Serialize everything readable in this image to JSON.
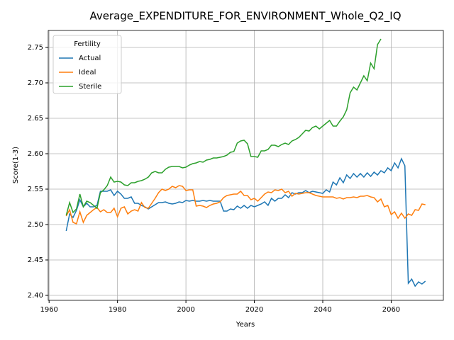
{
  "chart_data": {
    "type": "line",
    "title": "Average_EXPENDITURE_FOR_ENVIRONMENT_Whole_Q2_IQ",
    "xlabel": "Years",
    "ylabel": "Score(1-3)",
    "legend_title": "Fertility",
    "legend": "upper left",
    "grid": true,
    "xlim": [
      1959.75,
      2075.25
    ],
    "ylim": [
      2.393,
      2.774
    ],
    "xticks": [
      1960,
      1980,
      2000,
      2020,
      2040,
      2060
    ],
    "yticks": [
      {
        "value": 2.4,
        "label": "2.40"
      },
      {
        "value": 2.45,
        "label": "2.45"
      },
      {
        "value": 2.5,
        "label": "2.50"
      },
      {
        "value": 2.55,
        "label": "2.55"
      },
      {
        "value": 2.6,
        "label": "2.60"
      },
      {
        "value": 2.65,
        "label": "2.65"
      },
      {
        "value": 2.7,
        "label": "2.70"
      },
      {
        "value": 2.75,
        "label": "2.75"
      }
    ],
    "series": [
      {
        "name": "Actual",
        "color": "#1f77b4",
        "x": [
          1965,
          1966,
          1967,
          1968,
          1969,
          1970,
          1971,
          1972,
          1973,
          1974,
          1975,
          1976,
          1977,
          1978,
          1979,
          1980,
          1981,
          1982,
          1983,
          1984,
          1985,
          1986,
          1987,
          1988,
          1989,
          1990,
          1991,
          1992,
          1993,
          1994,
          1995,
          1996,
          1997,
          1998,
          1999,
          2000,
          2001,
          2002,
          2003,
          2004,
          2005,
          2006,
          2007,
          2008,
          2009,
          2010,
          2011,
          2012,
          2013,
          2014,
          2015,
          2016,
          2017,
          2018,
          2019,
          2020,
          2021,
          2022,
          2023,
          2024,
          2025,
          2026,
          2027,
          2028,
          2029,
          2030,
          2031,
          2032,
          2033,
          2034,
          2035,
          2036,
          2037,
          2038,
          2039,
          2040,
          2041,
          2042,
          2043,
          2044,
          2045,
          2046,
          2047,
          2048,
          2049,
          2050,
          2051,
          2052,
          2053,
          2054,
          2055,
          2056,
          2057,
          2058,
          2059,
          2060,
          2061,
          2062,
          2063,
          2064,
          2065,
          2066,
          2067,
          2068,
          2069,
          2070
        ],
        "values": [
          2.491,
          2.515,
          2.51,
          2.52,
          2.535,
          2.525,
          2.53,
          2.525,
          2.525,
          2.527,
          2.547,
          2.547,
          2.547,
          2.549,
          2.541,
          2.547,
          2.543,
          2.537,
          2.537,
          2.539,
          2.53,
          2.53,
          2.527,
          2.525,
          2.522,
          2.525,
          2.528,
          2.531,
          2.531,
          2.532,
          2.53,
          2.529,
          2.53,
          2.532,
          2.531,
          2.534,
          2.533,
          2.534,
          2.533,
          2.533,
          2.534,
          2.533,
          2.534,
          2.533,
          2.533,
          2.533,
          2.519,
          2.519,
          2.522,
          2.521,
          2.526,
          2.523,
          2.527,
          2.523,
          2.527,
          2.525,
          2.527,
          2.529,
          2.532,
          2.527,
          2.537,
          2.533,
          2.537,
          2.537,
          2.542,
          2.538,
          2.545,
          2.543,
          2.545,
          2.545,
          2.548,
          2.545,
          2.547,
          2.546,
          2.545,
          2.544,
          2.549,
          2.546,
          2.56,
          2.556,
          2.566,
          2.559,
          2.57,
          2.565,
          2.572,
          2.567,
          2.572,
          2.567,
          2.573,
          2.568,
          2.574,
          2.57,
          2.576,
          2.573,
          2.58,
          2.576,
          2.587,
          2.58,
          2.593,
          2.583,
          2.417,
          2.423,
          2.413,
          2.419,
          2.416,
          2.42
        ]
      },
      {
        "name": "Ideal",
        "color": "#ff7f0e",
        "x": [
          1965,
          1966,
          1967,
          1968,
          1969,
          1970,
          1971,
          1972,
          1973,
          1974,
          1975,
          1976,
          1977,
          1978,
          1979,
          1980,
          1981,
          1982,
          1983,
          1984,
          1985,
          1986,
          1987,
          1988,
          1989,
          1990,
          1991,
          1992,
          1993,
          1994,
          1995,
          1996,
          1997,
          1998,
          1999,
          2000,
          2001,
          2002,
          2003,
          2004,
          2005,
          2006,
          2007,
          2008,
          2009,
          2010,
          2011,
          2012,
          2013,
          2014,
          2015,
          2016,
          2017,
          2018,
          2019,
          2020,
          2021,
          2022,
          2023,
          2024,
          2025,
          2026,
          2027,
          2028,
          2029,
          2030,
          2031,
          2032,
          2033,
          2034,
          2035,
          2036,
          2037,
          2038,
          2039,
          2040,
          2041,
          2042,
          2043,
          2044,
          2045,
          2046,
          2047,
          2048,
          2049,
          2050,
          2051,
          2052,
          2053,
          2054,
          2055,
          2056,
          2057,
          2058,
          2059,
          2060,
          2061,
          2062,
          2063,
          2064,
          2065,
          2066,
          2067,
          2068,
          2069,
          2070
        ],
        "values": [
          2.512,
          2.521,
          2.503,
          2.501,
          2.518,
          2.503,
          2.513,
          2.517,
          2.521,
          2.524,
          2.518,
          2.521,
          2.517,
          2.517,
          2.523,
          2.511,
          2.523,
          2.525,
          2.515,
          2.519,
          2.521,
          2.519,
          2.531,
          2.524,
          2.523,
          2.53,
          2.537,
          2.545,
          2.55,
          2.548,
          2.55,
          2.554,
          2.552,
          2.555,
          2.554,
          2.548,
          2.549,
          2.549,
          2.526,
          2.527,
          2.526,
          2.524,
          2.527,
          2.529,
          2.53,
          2.532,
          2.538,
          2.541,
          2.542,
          2.543,
          2.543,
          2.547,
          2.541,
          2.541,
          2.535,
          2.537,
          2.533,
          2.538,
          2.543,
          2.546,
          2.545,
          2.549,
          2.548,
          2.55,
          2.545,
          2.547,
          2.54,
          2.544,
          2.543,
          2.544,
          2.545,
          2.545,
          2.543,
          2.541,
          2.54,
          2.539,
          2.539,
          2.539,
          2.539,
          2.537,
          2.538,
          2.536,
          2.538,
          2.538,
          2.539,
          2.538,
          2.54,
          2.54,
          2.541,
          2.539,
          2.538,
          2.532,
          2.536,
          2.525,
          2.527,
          2.514,
          2.518,
          2.509,
          2.516,
          2.509,
          2.515,
          2.513,
          2.521,
          2.52,
          2.529,
          2.528
        ]
      },
      {
        "name": "Sterile",
        "color": "#2ca02c",
        "x": [
          1965,
          1966,
          1967,
          1968,
          1969,
          1970,
          1971,
          1972,
          1973,
          1974,
          1975,
          1976,
          1977,
          1978,
          1979,
          1980,
          1981,
          1982,
          1983,
          1984,
          1985,
          1986,
          1987,
          1988,
          1989,
          1990,
          1991,
          1992,
          1993,
          1994,
          1995,
          1996,
          1997,
          1998,
          1999,
          2000,
          2001,
          2002,
          2003,
          2004,
          2005,
          2006,
          2007,
          2008,
          2009,
          2010,
          2011,
          2012,
          2013,
          2014,
          2015,
          2016,
          2017,
          2018,
          2019,
          2020,
          2021,
          2022,
          2023,
          2024,
          2025,
          2026,
          2027,
          2028,
          2029,
          2030,
          2031,
          2032,
          2033,
          2034,
          2035,
          2036,
          2037,
          2038,
          2039,
          2040,
          2041,
          2042,
          2043,
          2044,
          2045,
          2046,
          2047,
          2048,
          2049,
          2050,
          2051,
          2052,
          2053,
          2054,
          2055,
          2056,
          2057
        ],
        "values": [
          2.513,
          2.531,
          2.517,
          2.522,
          2.543,
          2.525,
          2.533,
          2.531,
          2.527,
          2.523,
          2.545,
          2.549,
          2.555,
          2.567,
          2.56,
          2.561,
          2.56,
          2.556,
          2.555,
          2.559,
          2.559,
          2.561,
          2.562,
          2.564,
          2.567,
          2.573,
          2.575,
          2.573,
          2.573,
          2.578,
          2.581,
          2.582,
          2.582,
          2.582,
          2.58,
          2.581,
          2.584,
          2.586,
          2.587,
          2.589,
          2.588,
          2.591,
          2.592,
          2.594,
          2.594,
          2.595,
          2.596,
          2.598,
          2.602,
          2.603,
          2.615,
          2.618,
          2.619,
          2.614,
          2.596,
          2.596,
          2.595,
          2.604,
          2.604,
          2.606,
          2.612,
          2.612,
          2.61,
          2.613,
          2.615,
          2.613,
          2.618,
          2.62,
          2.623,
          2.628,
          2.633,
          2.632,
          2.637,
          2.639,
          2.635,
          2.639,
          2.643,
          2.647,
          2.639,
          2.639,
          2.646,
          2.652,
          2.662,
          2.686,
          2.694,
          2.69,
          2.7,
          2.71,
          2.703,
          2.728,
          2.72,
          2.754,
          2.762
        ]
      }
    ]
  }
}
